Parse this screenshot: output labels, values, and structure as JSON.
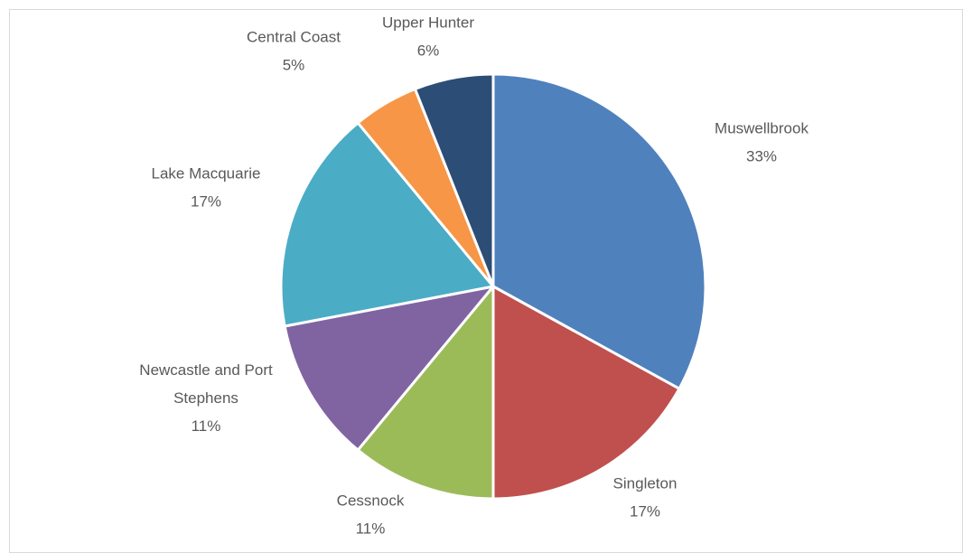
{
  "chart_data": {
    "type": "pie",
    "title": "",
    "start_angle_deg": 0,
    "direction": "clockwise",
    "slices": [
      {
        "name": "Muswellbrook",
        "label_lines": [
          "Muswellbrook"
        ],
        "percent_label": "33%",
        "value": 33,
        "color": "#4F81BD"
      },
      {
        "name": "Singleton",
        "label_lines": [
          "Singleton"
        ],
        "percent_label": "17%",
        "value": 17,
        "color": "#C0504D"
      },
      {
        "name": "Cessnock",
        "label_lines": [
          "Cessnock"
        ],
        "percent_label": "11%",
        "value": 11,
        "color": "#9BBB59"
      },
      {
        "name": "Newcastle and Port Stephens",
        "label_lines": [
          "Newcastle and Port",
          "Stephens"
        ],
        "percent_label": "11%",
        "value": 11,
        "color": "#8064A2"
      },
      {
        "name": "Lake Macquarie",
        "label_lines": [
          "Lake Macquarie"
        ],
        "percent_label": "17%",
        "value": 17,
        "color": "#4BACC6"
      },
      {
        "name": "Central Coast",
        "label_lines": [
          "Central Coast"
        ],
        "percent_label": "5%",
        "value": 5,
        "color": "#F79646"
      },
      {
        "name": "Upper Hunter",
        "label_lines": [
          "Upper Hunter"
        ],
        "percent_label": "6%",
        "value": 6,
        "color": "#2C4D75"
      }
    ]
  }
}
